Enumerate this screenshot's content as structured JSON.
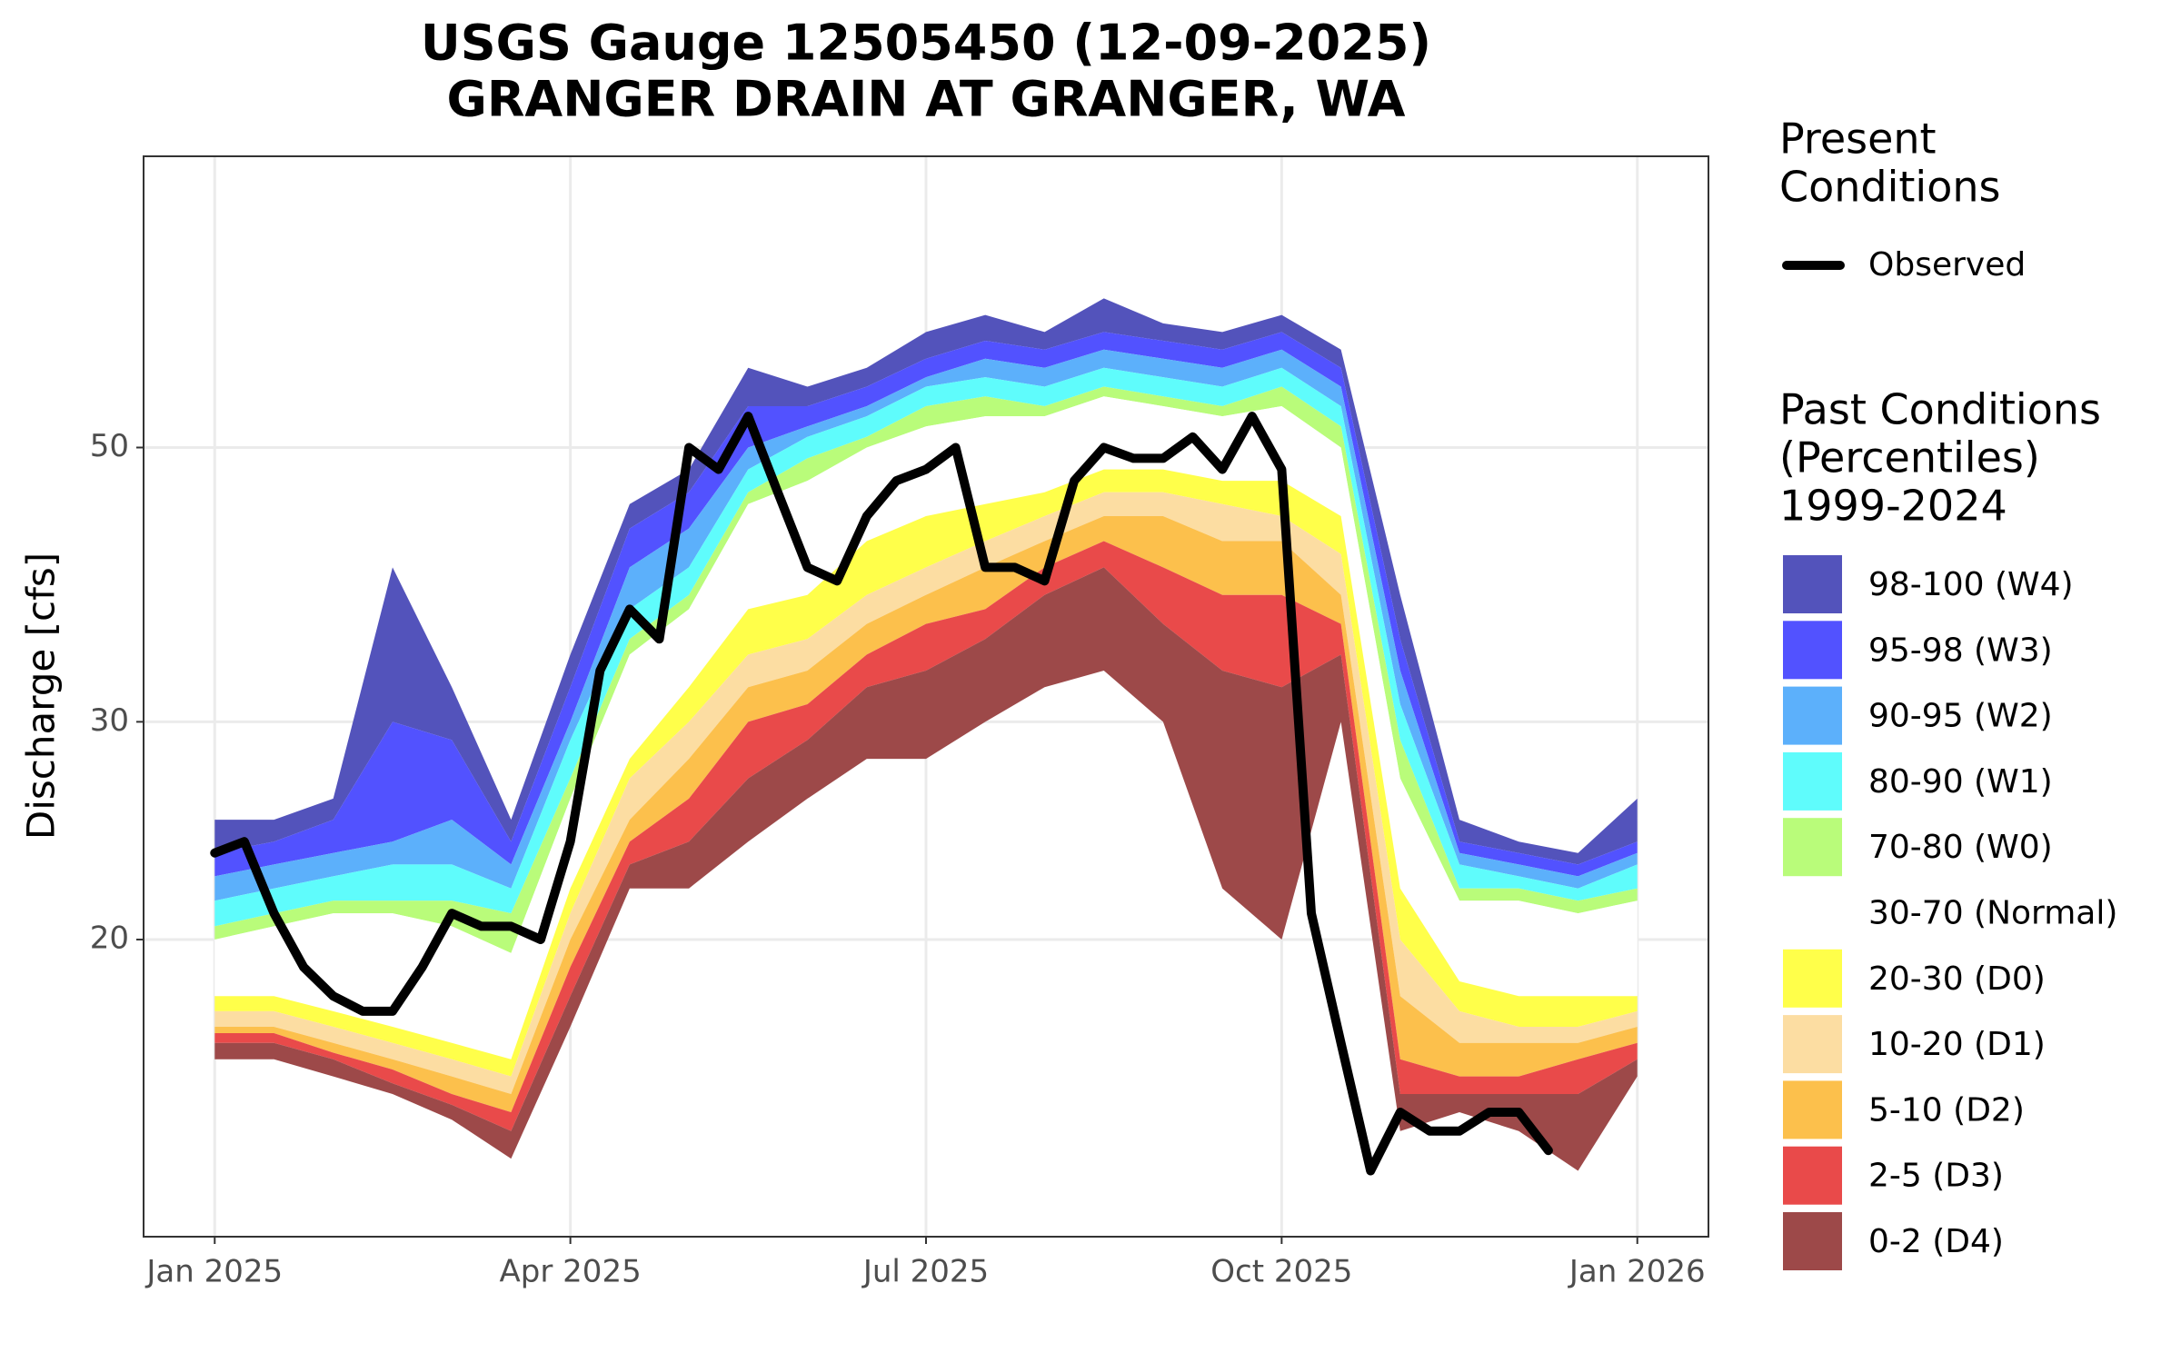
{
  "chart_data": {
    "type": "band",
    "title": "USGS Gauge 12505450 (12-09-2025)",
    "subtitle": "GRANGER DRAIN AT GRANGER, WA",
    "y_label": "Discharge [cfs]",
    "log_y": true,
    "grid": true,
    "legend_position": "right",
    "xlim": [
      -0.6,
      12.6
    ],
    "xticks": [
      {
        "value": 0,
        "label": "Jan 2025"
      },
      {
        "value": 3,
        "label": "Apr 2025"
      },
      {
        "value": 6,
        "label": "Jul 2025"
      },
      {
        "value": 9,
        "label": "Oct 2025"
      },
      {
        "value": 12,
        "label": "Jan 2026"
      }
    ],
    "ylim": [
      11.5,
      86
    ],
    "yticks": [
      20,
      30,
      50
    ],
    "present_legend_title": [
      "Present",
      "Conditions"
    ],
    "past_legend_title": [
      "Past Conditions",
      "(Percentiles)",
      "1999-2024"
    ],
    "x": [
      0,
      0.5,
      1,
      1.5,
      2,
      2.5,
      3,
      3.5,
      4,
      4.5,
      5,
      5.5,
      6,
      6.5,
      7,
      7.5,
      8,
      8.5,
      9,
      9.5,
      10,
      10.5,
      11,
      11.5,
      12
    ],
    "series": [
      {
        "name": "98-100 (W4)",
        "color": "#5353bb",
        "low": [
          23.5,
          24,
          25,
          30,
          29,
          24,
          32,
          43,
          46,
          54,
          54,
          56,
          59,
          61,
          60,
          62,
          61,
          60,
          62,
          58,
          35,
          24,
          23.5,
          23,
          24
        ],
        "high": [
          25,
          25,
          26,
          40,
          32,
          25,
          34,
          45,
          48,
          58,
          56,
          58,
          62,
          64,
          62,
          66,
          63,
          62,
          64,
          60,
          38,
          25,
          24,
          23.5,
          26
        ]
      },
      {
        "name": "95-98 (W3)",
        "color": "#5252ff",
        "low": [
          22.5,
          23,
          23.5,
          24,
          25,
          23,
          30,
          40,
          43,
          50,
          52,
          54,
          57,
          59,
          58,
          60,
          59,
          58,
          60,
          56,
          33,
          23.5,
          23,
          22.5,
          23.5
        ],
        "high": [
          23.5,
          24,
          25,
          30,
          29,
          24,
          32,
          43,
          46,
          54,
          54,
          56,
          59,
          61,
          60,
          62,
          61,
          60,
          62,
          58,
          35,
          24,
          23.5,
          23,
          24
        ]
      },
      {
        "name": "90-95 (W2)",
        "color": "#5cb0fb",
        "low": [
          21.5,
          22,
          22.5,
          23,
          23,
          22,
          29,
          37,
          40,
          48,
          51,
          53,
          56,
          57,
          56,
          58,
          57,
          56,
          58,
          54,
          31,
          23,
          22.5,
          22,
          23
        ],
        "high": [
          22.5,
          23,
          23.5,
          24,
          25,
          23,
          30,
          40,
          43,
          50,
          52,
          54,
          57,
          59,
          58,
          60,
          59,
          58,
          60,
          56,
          33,
          23.5,
          23,
          22.5,
          23.5
        ]
      },
      {
        "name": "80-90 (W1)",
        "color": "#5ffcfc",
        "low": [
          20.5,
          21,
          21.5,
          21.5,
          21.5,
          21,
          27,
          35,
          38,
          46,
          49,
          51,
          54,
          55,
          54,
          56,
          55,
          54,
          56,
          52,
          29,
          22,
          22,
          21.5,
          22
        ],
        "high": [
          21.5,
          22,
          22.5,
          23,
          23,
          22,
          29,
          37,
          40,
          48,
          51,
          53,
          56,
          57,
          56,
          58,
          57,
          56,
          58,
          54,
          31,
          23,
          22.5,
          22,
          23
        ]
      },
      {
        "name": "70-80 (W0)",
        "color": "#b9fc7a",
        "low": [
          20,
          20.5,
          21,
          21,
          20.5,
          19.5,
          26,
          34,
          37,
          45,
          47,
          50,
          52,
          53,
          53,
          55,
          54,
          53,
          54,
          50,
          27,
          21.5,
          21.5,
          21,
          21.5
        ],
        "high": [
          20.5,
          21,
          21.5,
          21.5,
          21.5,
          21,
          27,
          35,
          38,
          46,
          49,
          51,
          54,
          55,
          54,
          56,
          55,
          54,
          56,
          52,
          29,
          22,
          22,
          21.5,
          22
        ]
      },
      {
        "name": "30-70 (Normal)",
        "color": "#ffffff",
        "low": [
          18,
          18,
          17.5,
          17,
          16.5,
          16,
          22,
          28,
          32,
          37,
          38,
          42,
          44,
          45,
          46,
          48,
          48,
          47,
          47,
          44,
          22,
          18.5,
          18,
          18,
          18
        ],
        "high": [
          20,
          20.5,
          21,
          21,
          20.5,
          19.5,
          26,
          34,
          37,
          45,
          47,
          50,
          52,
          53,
          53,
          55,
          54,
          53,
          54,
          50,
          27,
          21.5,
          21.5,
          21,
          21.5
        ]
      },
      {
        "name": "20-30 (D0)",
        "color": "#ffff4a",
        "low": [
          17.5,
          17.5,
          17,
          16.5,
          16,
          15.5,
          21,
          27,
          30,
          34,
          35,
          38,
          40,
          42,
          44,
          46,
          46,
          45,
          44,
          41,
          20,
          17.5,
          17,
          17,
          17.5
        ],
        "high": [
          18,
          18,
          17.5,
          17,
          16.5,
          16,
          22,
          28,
          32,
          37,
          38,
          42,
          44,
          45,
          46,
          48,
          48,
          47,
          47,
          44,
          22,
          18.5,
          18,
          18,
          18
        ]
      },
      {
        "name": "10-20 (D1)",
        "color": "#fcdda2",
        "low": [
          17,
          17,
          16.5,
          16,
          15.5,
          15,
          20,
          25,
          28,
          32,
          33,
          36,
          38,
          40,
          42,
          44,
          44,
          42,
          42,
          38,
          18,
          16.5,
          16.5,
          16.5,
          17
        ],
        "high": [
          17.5,
          17.5,
          17,
          16.5,
          16,
          15.5,
          21,
          27,
          30,
          34,
          35,
          38,
          40,
          42,
          44,
          46,
          46,
          45,
          44,
          41,
          20,
          17.5,
          17,
          17,
          17.5
        ]
      },
      {
        "name": "5-10 (D2)",
        "color": "#fcc04c",
        "low": [
          16.8,
          16.8,
          16.2,
          15.7,
          15,
          14.5,
          19,
          24,
          26,
          30,
          31,
          34,
          36,
          37,
          40,
          42,
          40,
          38,
          38,
          36,
          16,
          15.5,
          15.5,
          16,
          16.5
        ],
        "high": [
          17,
          17,
          16.5,
          16,
          15.5,
          15,
          20,
          25,
          28,
          32,
          33,
          36,
          38,
          40,
          42,
          44,
          44,
          42,
          42,
          38,
          18,
          16.5,
          16.5,
          16.5,
          17
        ]
      },
      {
        "name": "2-5 (D3)",
        "color": "#e94a4a",
        "low": [
          16.5,
          16.5,
          16,
          15.3,
          14.7,
          14,
          18,
          23,
          24,
          27,
          29,
          32,
          33,
          35,
          38,
          40,
          36,
          33,
          32,
          34,
          15,
          15,
          15,
          15,
          16
        ],
        "high": [
          16.8,
          16.8,
          16.2,
          15.7,
          15,
          14.5,
          19,
          24,
          26,
          30,
          31,
          34,
          36,
          37,
          40,
          42,
          40,
          38,
          38,
          36,
          16,
          15.5,
          15.5,
          16,
          16.5
        ]
      },
      {
        "name": "0-2 (D4)",
        "color": "#9d4949",
        "low": [
          16,
          16,
          15.5,
          15,
          14.3,
          13.3,
          17,
          22,
          22,
          24,
          26,
          28,
          28,
          30,
          32,
          33,
          30,
          22,
          20,
          30,
          14,
          14.5,
          14,
          13,
          15.5
        ],
        "high": [
          16.5,
          16.5,
          16,
          15.3,
          14.7,
          14,
          18,
          23,
          24,
          27,
          29,
          32,
          33,
          35,
          38,
          40,
          36,
          33,
          32,
          34,
          15,
          15,
          15,
          15,
          16
        ]
      }
    ],
    "observed": {
      "name": "Observed",
      "color": "#000000",
      "x": [
        0,
        0.25,
        0.5,
        0.75,
        1,
        1.25,
        1.5,
        1.75,
        2,
        2.25,
        2.5,
        2.75,
        3,
        3.25,
        3.5,
        3.75,
        4,
        4.25,
        4.5,
        4.75,
        5,
        5.25,
        5.5,
        5.75,
        6,
        6.25,
        6.5,
        6.75,
        7,
        7.25,
        7.5,
        7.75,
        8,
        8.25,
        8.5,
        8.75,
        9,
        9.25,
        9.5,
        9.75,
        10,
        10.25,
        10.5,
        10.75,
        11,
        11.25
      ],
      "values": [
        23.5,
        24,
        21,
        19,
        18,
        17.5,
        17.5,
        19,
        21,
        20.5,
        20.5,
        20,
        24,
        33,
        37,
        35,
        50,
        48,
        53,
        46,
        40,
        39,
        44,
        47,
        48,
        50,
        40,
        40,
        39,
        47,
        50,
        49,
        49,
        51,
        48,
        53,
        48,
        21,
        16.5,
        13,
        14.5,
        14,
        14,
        14.5,
        14.5,
        13.5
      ]
    }
  }
}
